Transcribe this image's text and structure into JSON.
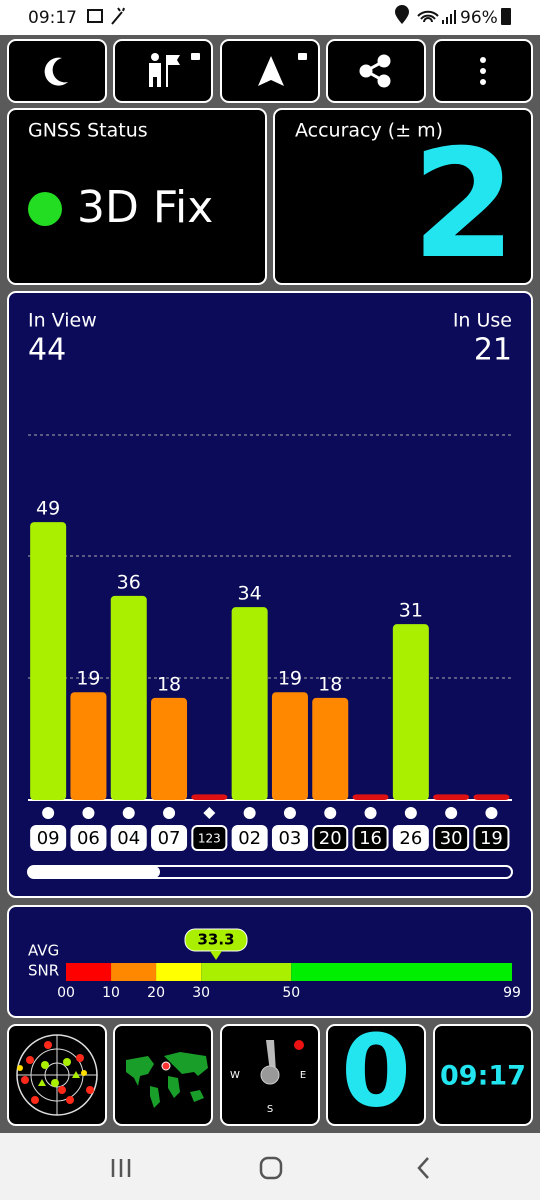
{
  "status_bar": {
    "time": "09:17",
    "battery": "96%"
  },
  "gnss_status": {
    "title": "GNSS Status",
    "status": "3D Fix"
  },
  "accuracy": {
    "title": "Accuracy (± m)",
    "value": 2
  },
  "satellites": {
    "in_view_label": "In View",
    "in_view": 44,
    "in_use_label": "In Use",
    "in_use": 21
  },
  "chart_data": {
    "type": "bar",
    "categories": [
      "09",
      "06",
      "04",
      "07",
      "123",
      "02",
      "03",
      "20",
      "16",
      "26",
      "30",
      "19"
    ],
    "values": [
      49,
      19,
      36,
      18,
      1,
      34,
      19,
      18,
      1,
      31,
      1,
      1
    ],
    "value_labels": [
      "49",
      "19",
      "36",
      "18",
      null,
      "34",
      "19",
      "18",
      null,
      "31",
      null,
      null
    ],
    "colors": [
      "#aaee00",
      "#ff8800",
      "#aaee00",
      "#ff8800",
      "#dd1111",
      "#aaee00",
      "#ff8800",
      "#ff8800",
      "#dd1111",
      "#aaee00",
      "#dd1111",
      "#dd1111"
    ],
    "markers": [
      "circle",
      "circle",
      "circle",
      "circle",
      "diamond",
      "circle",
      "circle",
      "circle",
      "circle",
      "circle",
      "circle",
      "circle"
    ],
    "used": [
      true,
      true,
      true,
      true,
      false,
      true,
      true,
      false,
      false,
      true,
      false,
      false
    ],
    "ylim": [
      0,
      70
    ]
  },
  "snr": {
    "avg_label": "AVG",
    "snr_label": "SNR",
    "avg": 33.3,
    "xlim": [
      0,
      99
    ],
    "ticks": [
      {
        "value": 0,
        "label": "00"
      },
      10,
      20,
      30,
      50,
      99
    ],
    "bands": [
      "#ff0000",
      "#ff8800",
      "#ffff00",
      "#aaee00",
      "#00ee00"
    ]
  },
  "compass": {
    "west": "W",
    "east": "E",
    "south": "S"
  },
  "tiles": {
    "count": 0,
    "clock": "09:17"
  }
}
